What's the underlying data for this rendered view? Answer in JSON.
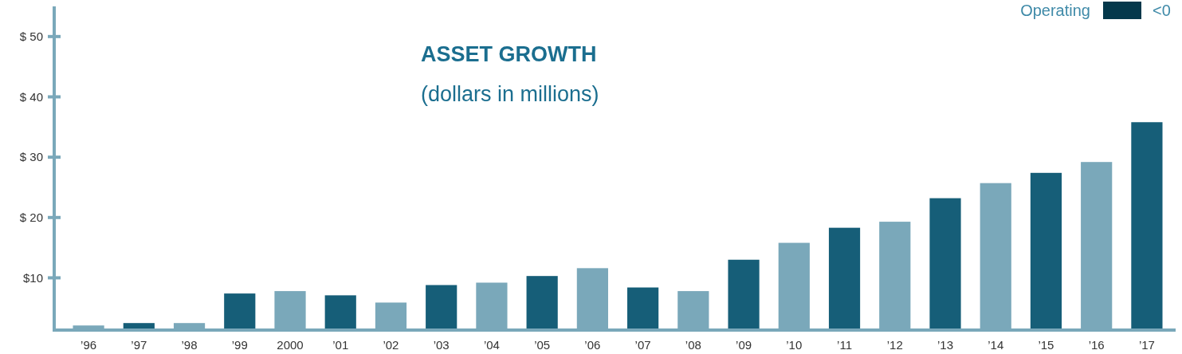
{
  "chart_data": {
    "type": "bar",
    "title": "ASSET GROWTH",
    "subtitle": "(dollars in millions)",
    "annotations": [
      "Operating",
      "<0"
    ],
    "categories": [
      "’96",
      "’97",
      "’98",
      "’99",
      "2000",
      "’01",
      "’02",
      "’03",
      "’04",
      "’05",
      "’06",
      "’07",
      "’08",
      "’09",
      "’10",
      "’11",
      "’12",
      "’13",
      "’14",
      "’15",
      "’16",
      "’17"
    ],
    "values": [
      2.1,
      2.5,
      2.5,
      7.4,
      7.8,
      7.1,
      5.9,
      8.8,
      9.2,
      10.3,
      11.6,
      8.4,
      7.8,
      13.0,
      15.8,
      18.3,
      19.3,
      23.2,
      25.7,
      27.4,
      29.2,
      35.8
    ],
    "colors": [
      "#7aa8ba",
      "#165e78",
      "#7aa8ba",
      "#165e78",
      "#7aa8ba",
      "#165e78",
      "#7aa8ba",
      "#165e78",
      "#7aa8ba",
      "#165e78",
      "#7aa8ba",
      "#165e78",
      "#7aa8ba",
      "#165e78",
      "#7aa8ba",
      "#165e78",
      "#7aa8ba",
      "#165e78",
      "#7aa8ba",
      "#165e78",
      "#7aa8ba",
      "#165e78"
    ],
    "ylim": [
      1.6,
      55
    ],
    "yticks": [
      {
        "value": 10,
        "label": "$10"
      },
      {
        "value": 20,
        "label": "$ 20"
      },
      {
        "value": 30,
        "label": "$ 30"
      },
      {
        "value": 40,
        "label": "$ 40"
      },
      {
        "value": 50,
        "label": "$ 50"
      }
    ],
    "grid": false
  }
}
